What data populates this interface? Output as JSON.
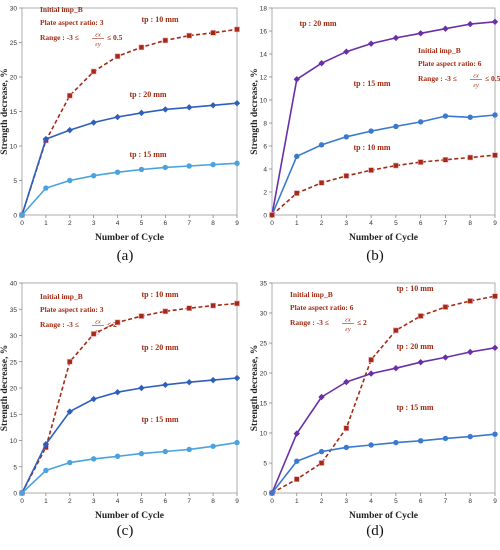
{
  "chart_data": [
    {
      "type": "line",
      "panel_label": "(a)",
      "xlabel": "Number of Cycle",
      "ylabel": "Strength decrease, %",
      "xlim": [
        0,
        9
      ],
      "ylim": [
        0,
        30
      ],
      "x_ticks": [
        0,
        1,
        2,
        3,
        4,
        5,
        6,
        7,
        8,
        9
      ],
      "y_ticks": [
        0,
        5,
        10,
        15,
        20,
        25,
        30
      ],
      "grid": false,
      "info": {
        "line1": "Initial imp_B",
        "line2": "Plate aspect ratio: 3",
        "range_prefix": "Range : -3 ≤",
        "range_num": "εx",
        "range_den": "εy",
        "range_suffix": "≤ 0.5"
      },
      "x": [
        0,
        1,
        2,
        3,
        4,
        5,
        6,
        7,
        8,
        9
      ],
      "series": [
        {
          "name": "tp : 10 mm",
          "values": [
            0,
            10.8,
            17.3,
            20.8,
            23.0,
            24.3,
            25.3,
            26.0,
            26.4,
            26.9
          ],
          "color": "#a32b12",
          "style": "dashed",
          "marker": "square"
        },
        {
          "name": "tp : 20 mm",
          "values": [
            0,
            11.0,
            12.3,
            13.4,
            14.2,
            14.8,
            15.3,
            15.6,
            15.9,
            16.2
          ],
          "color": "#2f5fbd",
          "style": "solid",
          "marker": "diamond"
        },
        {
          "name": "tp : 15 mm",
          "values": [
            0,
            3.9,
            5.0,
            5.7,
            6.2,
            6.6,
            6.9,
            7.1,
            7.3,
            7.5
          ],
          "color": "#4aa3df",
          "style": "solid",
          "marker": "circle"
        }
      ]
    },
    {
      "type": "line",
      "panel_label": "(b)",
      "xlabel": "Number of Cycle",
      "ylabel": "Strength decrease, %",
      "xlim": [
        0,
        9
      ],
      "ylim": [
        0,
        18
      ],
      "x_ticks": [
        0,
        1,
        2,
        3,
        4,
        5,
        6,
        7,
        8,
        9
      ],
      "y_ticks": [
        0,
        2,
        4,
        6,
        8,
        10,
        12,
        14,
        16,
        18
      ],
      "grid": false,
      "info": {
        "line1": "Initial imp_B",
        "line2": "Plate aspect ratio: 6",
        "range_prefix": "Range : -3 ≤",
        "range_num": "εx",
        "range_den": "εy",
        "range_suffix": "≤ 0.5"
      },
      "x": [
        0,
        1,
        2,
        3,
        4,
        5,
        6,
        7,
        8,
        9
      ],
      "series": [
        {
          "name": "tp : 20 mm",
          "values": [
            0,
            11.8,
            13.2,
            14.2,
            14.9,
            15.4,
            15.8,
            16.2,
            16.6,
            16.8
          ],
          "color": "#6a2fa8",
          "style": "solid",
          "marker": "diamond"
        },
        {
          "name": "tp : 15 mm",
          "values": [
            0,
            5.1,
            6.1,
            6.8,
            7.3,
            7.7,
            8.1,
            8.6,
            8.5,
            8.7
          ],
          "color": "#3a79cf",
          "style": "solid",
          "marker": "circle"
        },
        {
          "name": "tp : 10 mm",
          "values": [
            0,
            1.9,
            2.8,
            3.4,
            3.9,
            4.3,
            4.6,
            4.8,
            5.0,
            5.2
          ],
          "color": "#a32b12",
          "style": "dashed",
          "marker": "square"
        }
      ]
    },
    {
      "type": "line",
      "panel_label": "(c)",
      "xlabel": "Number of Cycle",
      "ylabel": "Strength decrease, %",
      "xlim": [
        0,
        9
      ],
      "ylim": [
        0,
        40
      ],
      "x_ticks": [
        0,
        1,
        2,
        3,
        4,
        5,
        6,
        7,
        8,
        9
      ],
      "y_ticks": [
        0,
        5,
        10,
        15,
        20,
        25,
        30,
        35,
        40
      ],
      "grid": false,
      "info": {
        "line1": "Initial imp_B",
        "line2": "Plate aspect ratio: 3",
        "range_prefix": "Range : -3 ≤",
        "range_num": "εx",
        "range_den": "εy",
        "range_suffix": "≤ 2"
      },
      "x": [
        0,
        1,
        2,
        3,
        4,
        5,
        6,
        7,
        8,
        9
      ],
      "series": [
        {
          "name": "tp : 10 mm",
          "values": [
            0,
            8.7,
            25.0,
            30.3,
            32.5,
            33.7,
            34.6,
            35.2,
            35.7,
            36.1
          ],
          "color": "#a32b12",
          "style": "dashed",
          "marker": "square"
        },
        {
          "name": "tp : 20 mm",
          "values": [
            0,
            9.3,
            15.5,
            17.9,
            19.2,
            20.0,
            20.6,
            21.1,
            21.5,
            21.9
          ],
          "color": "#2f5fbd",
          "style": "solid",
          "marker": "diamond"
        },
        {
          "name": "tp : 15 mm",
          "values": [
            0,
            4.3,
            5.8,
            6.5,
            7.0,
            7.5,
            7.9,
            8.3,
            8.9,
            9.6
          ],
          "color": "#4aa3df",
          "style": "solid",
          "marker": "circle"
        }
      ]
    },
    {
      "type": "line",
      "panel_label": "(d)",
      "xlabel": "Number of Cycle",
      "ylabel": "Strength decrease, %",
      "xlim": [
        0,
        9
      ],
      "ylim": [
        0,
        35
      ],
      "x_ticks": [
        0,
        1,
        2,
        3,
        4,
        5,
        6,
        7,
        8,
        9
      ],
      "y_ticks": [
        0,
        5,
        10,
        15,
        20,
        25,
        30,
        35
      ],
      "grid": false,
      "info": {
        "line1": "Initial imp_B",
        "line2": "Plate aspect ratio: 6",
        "range_prefix": "Range : -3 ≤",
        "range_num": "εx",
        "range_den": "εy",
        "range_suffix": "≤ 2"
      },
      "x": [
        0,
        1,
        2,
        3,
        4,
        5,
        6,
        7,
        8,
        9
      ],
      "series": [
        {
          "name": "tp : 10 mm",
          "values": [
            0,
            2.3,
            5.0,
            10.8,
            22.2,
            27.1,
            29.5,
            31.0,
            32.0,
            32.8
          ],
          "color": "#a32b12",
          "style": "dashed",
          "marker": "square"
        },
        {
          "name": "tp : 20 mm",
          "values": [
            0,
            9.9,
            16.0,
            18.5,
            19.9,
            20.8,
            21.8,
            22.6,
            23.5,
            24.2
          ],
          "color": "#6a2fa8",
          "style": "solid",
          "marker": "diamond"
        },
        {
          "name": "tp : 15 mm",
          "values": [
            0,
            5.3,
            6.9,
            7.6,
            8.0,
            8.4,
            8.7,
            9.1,
            9.4,
            9.8
          ],
          "color": "#3a79cf",
          "style": "solid",
          "marker": "circle"
        }
      ]
    }
  ]
}
